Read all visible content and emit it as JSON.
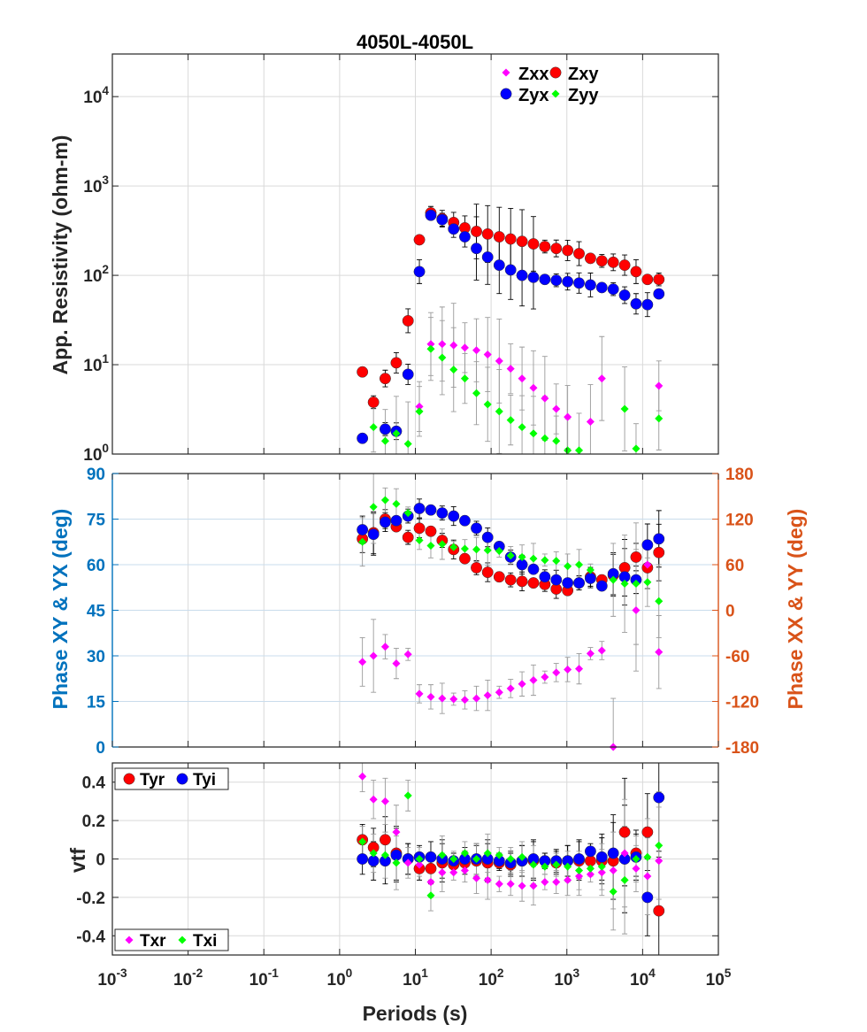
{
  "title": "4050L-4050L",
  "xlabel": "Periods (s)",
  "colors": {
    "zxx": "#ff00ff",
    "zxy": "#ff0000",
    "zyx": "#0000ff",
    "zyy": "#00ff00",
    "left_axis": "#0072bd",
    "right_axis": "#d95319",
    "grid": "#d9d9d9",
    "err_dark": "#000000",
    "err_light": "#9a9a9a"
  },
  "chart_data": [
    {
      "type": "scatter",
      "panel": "apparent-resistivity",
      "title": "4050L-4050L",
      "ylabel": "App. Resistivity (ohm-m)",
      "xscale": "log",
      "yscale": "log",
      "xlim": [
        0.001,
        100000
      ],
      "ylim": [
        1,
        30000
      ],
      "xticks": [
        "10^-3",
        "10^-2",
        "10^-1",
        "10^0",
        "10^1",
        "10^2",
        "10^3",
        "10^4",
        "10^5"
      ],
      "yticks": [
        "10^0",
        "10^1",
        "10^2",
        "10^3",
        "10^4"
      ],
      "grid": true,
      "legend": {
        "placement": "top-right",
        "entries": [
          "Zxx",
          "Zxy",
          "Zyx",
          "Zyy"
        ]
      },
      "series": [
        {
          "name": "Zxy",
          "x": [
            2.0,
            2.8,
            4.0,
            5.6,
            8.0,
            11.3,
            16,
            22.6,
            32,
            45,
            64,
            90,
            128,
            181,
            256,
            362,
            512,
            724,
            1024,
            1448,
            2048,
            2896,
            4096,
            5793,
            8192,
            11585,
            16384
          ],
          "y": [
            8.3,
            3.8,
            7.0,
            10.5,
            31,
            250,
            500,
            430,
            390,
            340,
            310,
            290,
            270,
            255,
            240,
            225,
            210,
            200,
            190,
            175,
            155,
            145,
            140,
            130,
            110,
            90,
            90
          ]
        },
        {
          "name": "Zyx",
          "x": [
            2.0,
            4.0,
            5.6,
            8.0,
            11.3,
            16,
            22.6,
            32,
            45,
            64,
            90,
            128,
            181,
            256,
            362,
            512,
            724,
            1024,
            1448,
            2048,
            2896,
            4096,
            5793,
            8192,
            11585,
            16384
          ],
          "y": [
            1.5,
            1.9,
            1.8,
            7.8,
            110,
            470,
            420,
            330,
            270,
            200,
            160,
            130,
            115,
            100,
            95,
            90,
            88,
            85,
            82,
            78,
            73,
            70,
            60,
            48,
            47,
            62
          ]
        },
        {
          "name": "Zxx",
          "x": [
            11.3,
            16,
            22.6,
            32,
            45,
            64,
            90,
            128,
            181,
            256,
            362,
            512,
            724,
            1024,
            2048,
            2896,
            16384
          ],
          "y": [
            3.4,
            17,
            17,
            16.5,
            15.5,
            14.5,
            13,
            11,
            9,
            7,
            5.5,
            4.2,
            3.2,
            2.6,
            2.3,
            7.0,
            5.8
          ]
        },
        {
          "name": "Zyy",
          "x": [
            2.8,
            4.0,
            5.6,
            8.0,
            11.3,
            16,
            22.6,
            32,
            45,
            64,
            90,
            128,
            181,
            256,
            362,
            512,
            724,
            1024,
            1448,
            5793,
            8192,
            16384
          ],
          "y": [
            2.0,
            1.4,
            1.7,
            1.3,
            3.0,
            15,
            12,
            8.8,
            7.0,
            4.8,
            3.6,
            3.0,
            2.4,
            2.0,
            1.7,
            1.5,
            1.4,
            1.1,
            1.1,
            3.2,
            1.15,
            2.5
          ]
        }
      ]
    },
    {
      "type": "scatter",
      "panel": "phase",
      "ylabel": "Phase XY & YX (deg)",
      "y2label": "Phase XX & YY (deg)",
      "xscale": "log",
      "xlim": [
        0.001,
        100000
      ],
      "ylim": [
        0,
        90
      ],
      "y2lim": [
        -180,
        180
      ],
      "yticks": [
        0,
        15,
        30,
        45,
        60,
        75,
        90
      ],
      "y2ticks": [
        -180,
        -120,
        -60,
        0,
        60,
        120,
        180
      ],
      "grid": true,
      "series": [
        {
          "name": "Zxy",
          "axis": "left",
          "x": [
            2.0,
            2.8,
            4.0,
            5.6,
            8.0,
            11.3,
            16,
            22.6,
            32,
            45,
            64,
            90,
            128,
            181,
            256,
            362,
            512,
            724,
            1024,
            1448,
            2048,
            2896,
            4096,
            5793,
            8192,
            11585,
            16384
          ],
          "y": [
            68.5,
            70.5,
            75,
            72.5,
            69,
            72,
            71,
            68,
            65,
            62,
            59,
            57.5,
            56,
            55,
            54.5,
            54,
            53.5,
            52,
            51.5,
            54,
            56,
            55,
            56.5,
            59,
            62.5,
            59,
            64
          ]
        },
        {
          "name": "Zyx",
          "axis": "left",
          "x": [
            2.0,
            2.8,
            4.0,
            5.6,
            8.0,
            11.3,
            16,
            22.6,
            32,
            45,
            64,
            90,
            128,
            181,
            256,
            362,
            512,
            724,
            1024,
            1448,
            2048,
            2896,
            4096,
            5793,
            8192,
            11585,
            16384
          ],
          "y": [
            71.5,
            70,
            74,
            74.5,
            76,
            78.5,
            78,
            77,
            76,
            74.5,
            72,
            69,
            66,
            62.5,
            60,
            58.5,
            56,
            55,
            54,
            54,
            55.5,
            53,
            57,
            56,
            55,
            66.5,
            68.5
          ]
        },
        {
          "name": "Zxx",
          "axis": "right",
          "x": [
            2.0,
            2.8,
            4.0,
            5.6,
            8.0,
            11.3,
            16,
            22.6,
            32,
            45,
            64,
            90,
            128,
            181,
            256,
            362,
            512,
            724,
            1024,
            1448,
            2048,
            2896,
            4096,
            8192,
            11585,
            16384
          ],
          "y": [
            -68,
            -60,
            -48,
            -70,
            -58,
            -110,
            -114,
            -116,
            -117,
            -118,
            -116,
            -112,
            -108,
            -103,
            -97,
            -92,
            -88,
            -82,
            -78,
            -77,
            -57,
            -53,
            -180,
            0,
            60,
            -55
          ]
        },
        {
          "name": "Zyy",
          "axis": "right",
          "x": [
            2.0,
            2.8,
            4.0,
            5.6,
            8.0,
            11.3,
            16,
            22.6,
            32,
            45,
            64,
            90,
            128,
            181,
            256,
            362,
            512,
            724,
            1024,
            1448,
            2048,
            4096,
            5793,
            8192,
            11585,
            16384
          ],
          "y": [
            90,
            136,
            145,
            140,
            128,
            92,
            85,
            87,
            83,
            81,
            80,
            79,
            78,
            72,
            70,
            68,
            66,
            65,
            58,
            60,
            53,
            40,
            35,
            35,
            37,
            12
          ]
        }
      ]
    },
    {
      "type": "scatter",
      "panel": "tipper",
      "ylabel": "vtf",
      "xscale": "log",
      "xlim": [
        0.001,
        100000
      ],
      "ylim": [
        -0.5,
        0.5
      ],
      "yticks": [
        -0.4,
        -0.2,
        0,
        0.2,
        0.4
      ],
      "grid": true,
      "legends": [
        {
          "placement": "top-left",
          "entries": [
            "Tyr",
            "Tyi"
          ]
        },
        {
          "placement": "bottom-left",
          "entries": [
            "Txr",
            "Txi"
          ]
        }
      ],
      "series": [
        {
          "name": "Tyr",
          "x": [
            2.0,
            2.8,
            4.0,
            5.6,
            8.0,
            11.3,
            16,
            22.6,
            32,
            45,
            64,
            90,
            128,
            181,
            256,
            362,
            512,
            724,
            1024,
            1448,
            2048,
            2896,
            4096,
            5793,
            8192,
            11585,
            16384
          ],
          "y": [
            0.1,
            0.06,
            0.1,
            0.03,
            0.0,
            -0.05,
            -0.05,
            -0.02,
            -0.03,
            -0.02,
            -0.01,
            -0.02,
            -0.02,
            -0.03,
            -0.01,
            -0.01,
            -0.01,
            -0.02,
            -0.01,
            -0.01,
            -0.01,
            -0.01,
            -0.01,
            0.14,
            0.03,
            0.14,
            -0.27
          ]
        },
        {
          "name": "Tyi",
          "x": [
            2.0,
            2.8,
            4.0,
            5.6,
            8.0,
            11.3,
            16,
            22.6,
            32,
            45,
            64,
            90,
            128,
            181,
            256,
            362,
            512,
            724,
            1024,
            1448,
            2048,
            2896,
            4096,
            5793,
            8192,
            11585,
            16384
          ],
          "y": [
            0.0,
            -0.01,
            -0.01,
            0.02,
            0.0,
            0.01,
            0.01,
            0.0,
            -0.01,
            0.0,
            0.0,
            0.0,
            -0.01,
            -0.02,
            -0.01,
            0.0,
            -0.01,
            -0.01,
            -0.01,
            0.0,
            0.04,
            0.01,
            0.03,
            0.0,
            0.01,
            -0.2,
            0.32
          ]
        },
        {
          "name": "Txr",
          "x": [
            2.0,
            2.8,
            4.0,
            5.6,
            8.0,
            11.3,
            16,
            22.6,
            32,
            45,
            64,
            90,
            128,
            181,
            256,
            362,
            512,
            724,
            1024,
            1448,
            2048,
            2896,
            4096,
            5793,
            8192,
            11585,
            16384
          ],
          "y": [
            0.43,
            0.31,
            0.3,
            0.14,
            -0.02,
            -0.03,
            -0.12,
            -0.07,
            -0.07,
            -0.06,
            -0.1,
            -0.11,
            -0.13,
            -0.13,
            -0.14,
            -0.14,
            -0.12,
            -0.12,
            -0.11,
            -0.09,
            -0.08,
            -0.07,
            -0.06,
            0.03,
            -0.05,
            -0.09,
            -0.01
          ]
        },
        {
          "name": "Txi",
          "x": [
            2.0,
            2.8,
            4.0,
            5.6,
            8.0,
            11.3,
            16,
            22.6,
            32,
            45,
            64,
            90,
            128,
            181,
            256,
            362,
            512,
            724,
            1024,
            1448,
            2048,
            2896,
            4096,
            5793,
            8192,
            11585,
            16384
          ],
          "y": [
            0.09,
            0.03,
            0.02,
            -0.02,
            0.33,
            0.0,
            -0.19,
            0.02,
            0.0,
            0.03,
            0.0,
            0.03,
            0.02,
            0.0,
            0.01,
            -0.03,
            -0.04,
            -0.03,
            -0.04,
            -0.06,
            -0.05,
            -0.04,
            -0.17,
            -0.11,
            0.0,
            0.01,
            0.07
          ]
        }
      ]
    }
  ]
}
